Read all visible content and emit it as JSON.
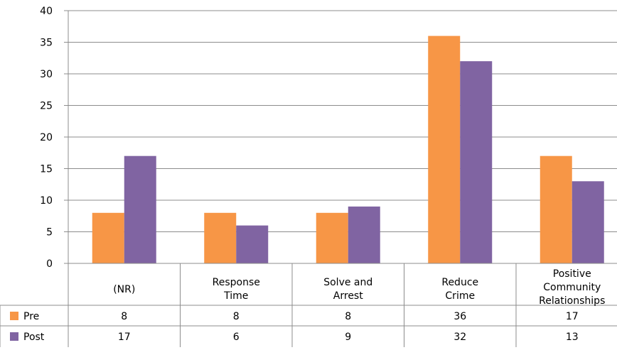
{
  "chart_data": {
    "type": "bar",
    "categories": [
      [
        "(NR)"
      ],
      [
        "Response",
        "Time"
      ],
      [
        "Solve and",
        "Arrest"
      ],
      [
        "Reduce",
        "Crime"
      ],
      [
        "Positive",
        "Community",
        "Relationships"
      ]
    ],
    "series": [
      {
        "name": "Pre",
        "color": "#F79646",
        "values": [
          8,
          8,
          8,
          36,
          17
        ]
      },
      {
        "name": "Post",
        "color": "#8064A2",
        "values": [
          17,
          6,
          9,
          32,
          13
        ]
      }
    ],
    "ylim": [
      0,
      40
    ],
    "yticks": [
      0,
      5,
      10,
      15,
      20,
      25,
      30,
      35,
      40
    ],
    "grid": true,
    "legend": "data-table-left"
  }
}
